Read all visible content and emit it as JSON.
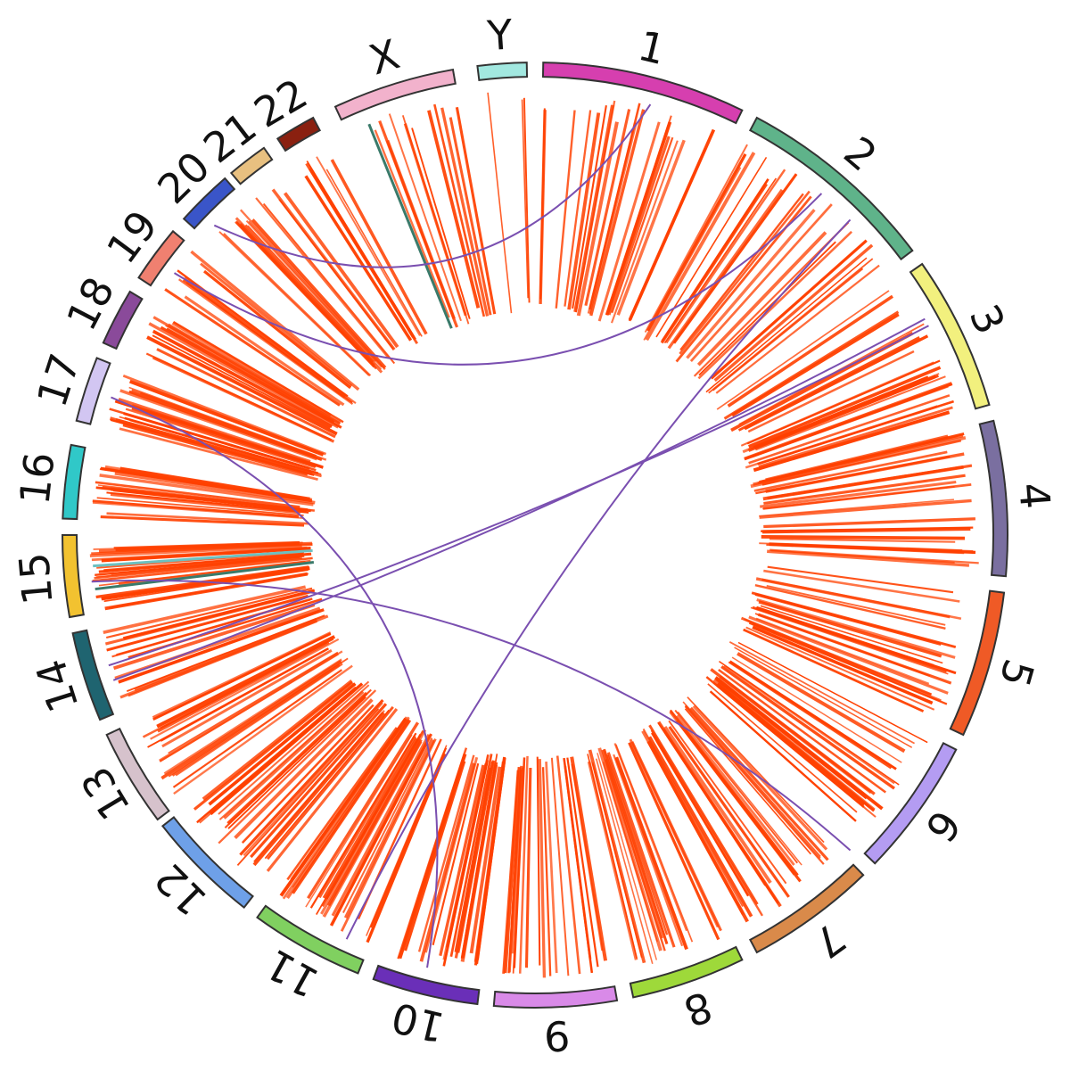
{
  "chart_data": {
    "type": "circos",
    "chromosomes": [
      {
        "name": "1",
        "color": "#d63faf"
      },
      {
        "name": "2",
        "color": "#5fb38a"
      },
      {
        "name": "3",
        "color": "#f2f07e"
      },
      {
        "name": "4",
        "color": "#7a6fa0"
      },
      {
        "name": "5",
        "color": "#ef5a26"
      },
      {
        "name": "6",
        "color": "#b49cf2"
      },
      {
        "name": "7",
        "color": "#d98a4a"
      },
      {
        "name": "8",
        "color": "#9ed93a"
      },
      {
        "name": "9",
        "color": "#d98ae8"
      },
      {
        "name": "10",
        "color": "#6a2fb8"
      },
      {
        "name": "11",
        "color": "#80d060"
      },
      {
        "name": "12",
        "color": "#6ea0e8"
      },
      {
        "name": "13",
        "color": "#d6c2cc"
      },
      {
        "name": "14",
        "color": "#1f6470"
      },
      {
        "name": "15",
        "color": "#f2c230"
      },
      {
        "name": "16",
        "color": "#30c8c8"
      },
      {
        "name": "17",
        "color": "#d2c6f2"
      },
      {
        "name": "18",
        "color": "#8a4a9a"
      },
      {
        "name": "19",
        "color": "#f08070"
      },
      {
        "name": "20",
        "color": "#3a55c8"
      },
      {
        "name": "21",
        "color": "#e8c080"
      },
      {
        "name": "22",
        "color": "#8a2010"
      },
      {
        "name": "X",
        "color": "#f2b2cc"
      },
      {
        "name": "Y",
        "color": "#a2e8e0"
      }
    ],
    "track_color": "#ff4000",
    "link_color": "#7a4fb0",
    "highlight_colors": [
      "#6cc0c0",
      "#3a7a6a"
    ],
    "track_counts": {
      "1": 22,
      "2": 26,
      "3": 26,
      "4": 30,
      "5": 26,
      "6": 22,
      "7": 26,
      "8": 20,
      "9": 20,
      "10": 24,
      "11": 30,
      "12": 26,
      "13": 20,
      "14": 16,
      "15": 26,
      "16": 20,
      "17": 22,
      "18": 14,
      "19": 10,
      "20": 12,
      "21": 5,
      "22": 8,
      "X": 12,
      "Y": 3
    },
    "links": [
      {
        "from": "20",
        "to": "1"
      },
      {
        "from": "19",
        "to": "2"
      },
      {
        "from": "3",
        "to": "14"
      },
      {
        "from": "3",
        "to": "14"
      },
      {
        "from": "17",
        "to": "10"
      },
      {
        "from": "15",
        "to": "7"
      },
      {
        "from": "2",
        "to": "11"
      }
    ]
  }
}
